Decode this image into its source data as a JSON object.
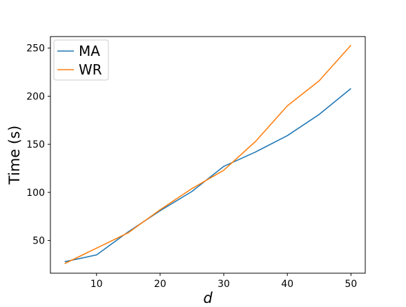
{
  "chart_data": {
    "type": "line",
    "title": "",
    "xlabel": "d",
    "ylabel": "Time (s)",
    "xlim": [
      2.75,
      52.25
    ],
    "ylim": [
      16,
      262
    ],
    "x_ticks": [
      10,
      20,
      30,
      40,
      50
    ],
    "y_ticks": [
      50,
      100,
      150,
      200,
      250
    ],
    "grid": false,
    "legend_position": "top-left",
    "series": [
      {
        "name": "MA",
        "color": "#1f77b4",
        "x": [
          5,
          10,
          15,
          20,
          25,
          30,
          35,
          40,
          45,
          50
        ],
        "values": [
          28,
          35,
          59,
          81,
          101,
          127,
          142,
          159,
          181,
          208
        ]
      },
      {
        "name": "WR",
        "color": "#ff7f0e",
        "x": [
          5,
          10,
          15,
          20,
          25,
          30,
          35,
          40,
          45,
          50
        ],
        "values": [
          26,
          42,
          58,
          82,
          104,
          123,
          153,
          190,
          216,
          253
        ]
      }
    ]
  }
}
